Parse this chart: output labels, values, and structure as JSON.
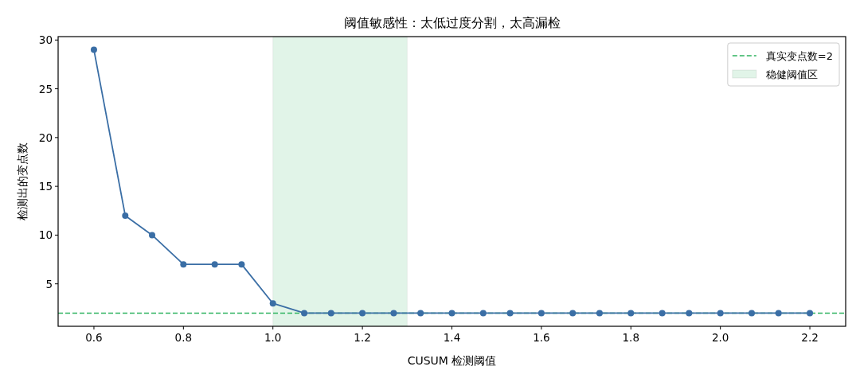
{
  "chart_data": {
    "type": "line",
    "title": "阈值敏感性：太低过度分割，太高漏检",
    "xlabel": "CUSUM 检测阈值",
    "ylabel": "检测出的变点数",
    "x": [
      0.6,
      0.67,
      0.73,
      0.8,
      0.87,
      0.93,
      1.0,
      1.07,
      1.13,
      1.2,
      1.27,
      1.33,
      1.4,
      1.47,
      1.53,
      1.6,
      1.67,
      1.73,
      1.8,
      1.87,
      1.93,
      2.0,
      2.07,
      2.13,
      2.2
    ],
    "series": [
      {
        "color": "#3a6ea5",
        "values": [
          29,
          12,
          10,
          7,
          7,
          7,
          3,
          2,
          2,
          2,
          2,
          2,
          2,
          2,
          2,
          2,
          2,
          2,
          2,
          2,
          2,
          2,
          2,
          2,
          2
        ]
      }
    ],
    "marker": "circle",
    "xlim": [
      0.52,
      2.28
    ],
    "ylim": [
      0.65,
      30.35
    ],
    "xticks": [
      0.6,
      0.8,
      {
        "value": 1,
        "label": "1.0"
      },
      1.2,
      1.4,
      1.6,
      1.8,
      {
        "value": 2,
        "label": "2.0"
      },
      2.2
    ],
    "yticks": [
      5,
      10,
      15,
      20,
      25,
      30
    ],
    "ref_lines": [
      {
        "axis": "y",
        "value": 2,
        "label": "真实变点数=2",
        "color": "#2eb35f",
        "line_style": "dashed"
      }
    ],
    "bands": [
      {
        "axis": "x",
        "from": 1.0,
        "to": 1.3,
        "label": "稳健阈值区",
        "color": "#e1f4e8"
      }
    ],
    "legend": "top right"
  }
}
